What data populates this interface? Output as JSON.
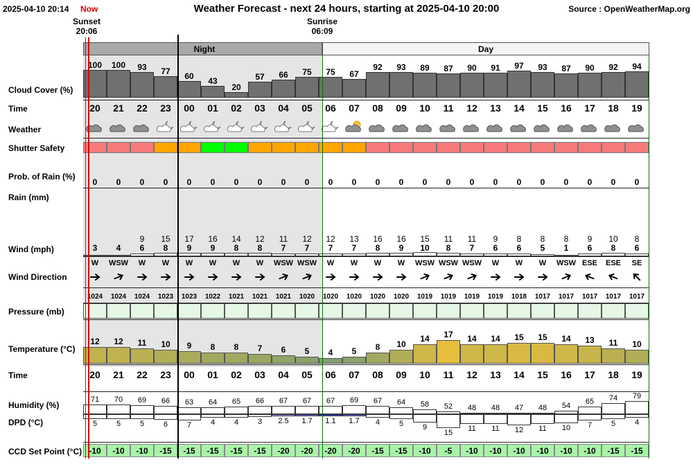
{
  "header": {
    "datetime": "2025-04-10 20:14",
    "now_label": "Now",
    "title": "Weather Forecast - next 24 hours, starting at 2025-04-10 20:00",
    "source": "Source : OpenWeatherMap.org",
    "sunset_label": "Sunset",
    "sunset_time": "20:06",
    "sunrise_label": "Sunrise",
    "sunrise_time": "06:09"
  },
  "bands": {
    "night_label": "Night",
    "day_label": "Day"
  },
  "row_labels": {
    "cloud": "Cloud Cover (%)",
    "time": "Time",
    "weather": "Weather",
    "shutter": "Shutter Safety",
    "rain_prob": "Prob. of Rain (%)",
    "rain": "Rain (mm)",
    "wind": "Wind (mph)",
    "wind_dir": "Wind Direction",
    "pressure": "Pressure (mb)",
    "temperature": "Temperature (°C)",
    "time2": "Time",
    "humidity": "Humidity (%)",
    "dpd": "DPD (°C)",
    "ccd": "CCD Set Point (°C)"
  },
  "colors": {
    "shutter_red": "#f77b7b",
    "shutter_orange": "#ffa500",
    "shutter_green": "#00ff00",
    "night_shade": "#e5e5e5",
    "cloud_fill": "#707070",
    "pressure_fill": "#e6f7e6",
    "ccd_fill": "#a9f3a9",
    "now_marker": "#dd0000",
    "sun_marker": "#007700"
  },
  "hours": [
    {
      "time": "20",
      "cloud": 100,
      "weather": "cloud-icon",
      "shutter": "red",
      "rain_prob": "0",
      "wind_gust": "",
      "wind": "3",
      "wind_dir": "W",
      "wind_deg": 90,
      "pressure": "1024",
      "temp": "12",
      "humidity": "71",
      "dpd": "5",
      "ccd": "-10"
    },
    {
      "time": "21",
      "cloud": 100,
      "weather": "cloud-icon",
      "shutter": "red",
      "rain_prob": "0",
      "wind_gust": "",
      "wind": "4",
      "wind_dir": "WSW",
      "wind_deg": 68,
      "pressure": "1024",
      "temp": "12",
      "humidity": "70",
      "dpd": "5",
      "ccd": "-10"
    },
    {
      "time": "22",
      "cloud": 93,
      "weather": "cloud-icon",
      "shutter": "red",
      "rain_prob": "0",
      "wind_gust": "9",
      "wind": "6",
      "wind_dir": "W",
      "wind_deg": 90,
      "pressure": "1024",
      "temp": "11",
      "humidity": "69",
      "dpd": "5",
      "ccd": "-10"
    },
    {
      "time": "23",
      "cloud": 77,
      "weather": "partly-cloudy-night-icon",
      "shutter": "orange",
      "rain_prob": "0",
      "wind_gust": "15",
      "wind": "8",
      "wind_dir": "W",
      "wind_deg": 90,
      "pressure": "1023",
      "temp": "10",
      "humidity": "66",
      "dpd": "6",
      "ccd": "-15"
    },
    {
      "time": "00",
      "cloud": 60,
      "weather": "partly-cloudy-night-icon",
      "shutter": "orange",
      "rain_prob": "0",
      "wind_gust": "17",
      "wind": "9",
      "wind_dir": "W",
      "wind_deg": 90,
      "pressure": "1023",
      "temp": "9",
      "humidity": "63",
      "dpd": "7",
      "ccd": "-15"
    },
    {
      "time": "01",
      "cloud": 43,
      "weather": "partly-cloudy-night-icon",
      "shutter": "green",
      "rain_prob": "0",
      "wind_gust": "16",
      "wind": "9",
      "wind_dir": "W",
      "wind_deg": 90,
      "pressure": "1022",
      "temp": "8",
      "humidity": "64",
      "dpd": "4",
      "ccd": "-15"
    },
    {
      "time": "02",
      "cloud": 20,
      "weather": "partly-cloudy-night-icon",
      "shutter": "green",
      "rain_prob": "0",
      "wind_gust": "14",
      "wind": "8",
      "wind_dir": "W",
      "wind_deg": 90,
      "pressure": "1021",
      "temp": "8",
      "humidity": "65",
      "dpd": "4",
      "ccd": "-15"
    },
    {
      "time": "03",
      "cloud": 57,
      "weather": "partly-cloudy-night-icon",
      "shutter": "orange",
      "rain_prob": "0",
      "wind_gust": "12",
      "wind": "8",
      "wind_dir": "W",
      "wind_deg": 90,
      "pressure": "1021",
      "temp": "7",
      "humidity": "66",
      "dpd": "3",
      "ccd": "-15"
    },
    {
      "time": "04",
      "cloud": 66,
      "weather": "partly-cloudy-night-icon",
      "shutter": "orange",
      "rain_prob": "0",
      "wind_gust": "11",
      "wind": "7",
      "wind_dir": "WSW",
      "wind_deg": 68,
      "pressure": "1021",
      "temp": "6",
      "humidity": "67",
      "dpd": "2.5",
      "ccd": "-20"
    },
    {
      "time": "05",
      "cloud": 75,
      "weather": "partly-cloudy-night-icon",
      "shutter": "orange",
      "rain_prob": "0",
      "wind_gust": "12",
      "wind": "7",
      "wind_dir": "WSW",
      "wind_deg": 68,
      "pressure": "1020",
      "temp": "5",
      "humidity": "67",
      "dpd": "1.7",
      "ccd": "-20"
    },
    {
      "time": "06",
      "cloud": 75,
      "weather": "partly-cloudy-night-icon",
      "shutter": "orange",
      "rain_prob": "0",
      "wind_gust": "12",
      "wind": "7",
      "wind_dir": "W",
      "wind_deg": 90,
      "pressure": "1020",
      "temp": "4",
      "humidity": "67",
      "dpd": "1.1",
      "ccd": "-20"
    },
    {
      "time": "07",
      "cloud": 67,
      "weather": "partly-cloudy-day-icon",
      "shutter": "orange",
      "rain_prob": "0",
      "wind_gust": "13",
      "wind": "7",
      "wind_dir": "W",
      "wind_deg": 90,
      "pressure": "1020",
      "temp": "5",
      "humidity": "69",
      "dpd": "1.7",
      "ccd": "-20"
    },
    {
      "time": "08",
      "cloud": 92,
      "weather": "cloud-icon",
      "shutter": "red",
      "rain_prob": "0",
      "wind_gust": "16",
      "wind": "8",
      "wind_dir": "W",
      "wind_deg": 90,
      "pressure": "1020",
      "temp": "8",
      "humidity": "67",
      "dpd": "4",
      "ccd": "-15"
    },
    {
      "time": "09",
      "cloud": 93,
      "weather": "cloud-icon",
      "shutter": "red",
      "rain_prob": "0",
      "wind_gust": "16",
      "wind": "9",
      "wind_dir": "W",
      "wind_deg": 90,
      "pressure": "1020",
      "temp": "10",
      "humidity": "64",
      "dpd": "5",
      "ccd": "-15"
    },
    {
      "time": "10",
      "cloud": 89,
      "weather": "cloud-icon",
      "shutter": "red",
      "rain_prob": "0",
      "wind_gust": "15",
      "wind": "10",
      "wind_dir": "WSW",
      "wind_deg": 68,
      "pressure": "1019",
      "temp": "14",
      "humidity": "58",
      "dpd": "9",
      "ccd": "-10"
    },
    {
      "time": "11",
      "cloud": 87,
      "weather": "cloud-icon",
      "shutter": "red",
      "rain_prob": "0",
      "wind_gust": "11",
      "wind": "8",
      "wind_dir": "WSW",
      "wind_deg": 68,
      "pressure": "1019",
      "temp": "17",
      "humidity": "52",
      "dpd": "15",
      "ccd": "-5"
    },
    {
      "time": "12",
      "cloud": 90,
      "weather": "cloud-icon",
      "shutter": "red",
      "rain_prob": "0",
      "wind_gust": "11",
      "wind": "7",
      "wind_dir": "WSW",
      "wind_deg": 68,
      "pressure": "1019",
      "temp": "14",
      "humidity": "48",
      "dpd": "11",
      "ccd": "-10"
    },
    {
      "time": "13",
      "cloud": 91,
      "weather": "cloud-icon",
      "shutter": "red",
      "rain_prob": "0",
      "wind_gust": "9",
      "wind": "6",
      "wind_dir": "W",
      "wind_deg": 90,
      "pressure": "1019",
      "temp": "14",
      "humidity": "48",
      "dpd": "11",
      "ccd": "-10"
    },
    {
      "time": "14",
      "cloud": 97,
      "weather": "cloud-icon",
      "shutter": "red",
      "rain_prob": "0",
      "wind_gust": "8",
      "wind": "6",
      "wind_dir": "W",
      "wind_deg": 90,
      "pressure": "1018",
      "temp": "15",
      "humidity": "47",
      "dpd": "12",
      "ccd": "-10"
    },
    {
      "time": "15",
      "cloud": 93,
      "weather": "cloud-icon",
      "shutter": "red",
      "rain_prob": "0",
      "wind_gust": "8",
      "wind": "5",
      "wind_dir": "W",
      "wind_deg": 90,
      "pressure": "1017",
      "temp": "15",
      "humidity": "48",
      "dpd": "11",
      "ccd": "-10"
    },
    {
      "time": "16",
      "cloud": 87,
      "weather": "cloud-icon",
      "shutter": "red",
      "rain_prob": "0",
      "wind_gust": "8",
      "wind": "1",
      "wind_dir": "WSW",
      "wind_deg": 68,
      "pressure": "1017",
      "temp": "14",
      "humidity": "54",
      "dpd": "10",
      "ccd": "-10"
    },
    {
      "time": "17",
      "cloud": 90,
      "weather": "cloud-icon",
      "shutter": "red",
      "rain_prob": "0",
      "wind_gust": "9",
      "wind": "6",
      "wind_dir": "ESE",
      "wind_deg": -68,
      "pressure": "1017",
      "temp": "13",
      "humidity": "65",
      "dpd": "7",
      "ccd": "-10"
    },
    {
      "time": "18",
      "cloud": 92,
      "weather": "cloud-icon",
      "shutter": "red",
      "rain_prob": "0",
      "wind_gust": "10",
      "wind": "8",
      "wind_dir": "ESE",
      "wind_deg": -68,
      "pressure": "1017",
      "temp": "11",
      "humidity": "74",
      "dpd": "5",
      "ccd": "-15"
    },
    {
      "time": "19",
      "cloud": 94,
      "weather": "cloud-icon",
      "shutter": "red",
      "rain_prob": "0",
      "wind_gust": "8",
      "wind": "6",
      "wind_dir": "SE",
      "wind_deg": -45,
      "pressure": "1017",
      "temp": "10",
      "humidity": "79",
      "dpd": "4",
      "ccd": "-15"
    }
  ]
}
